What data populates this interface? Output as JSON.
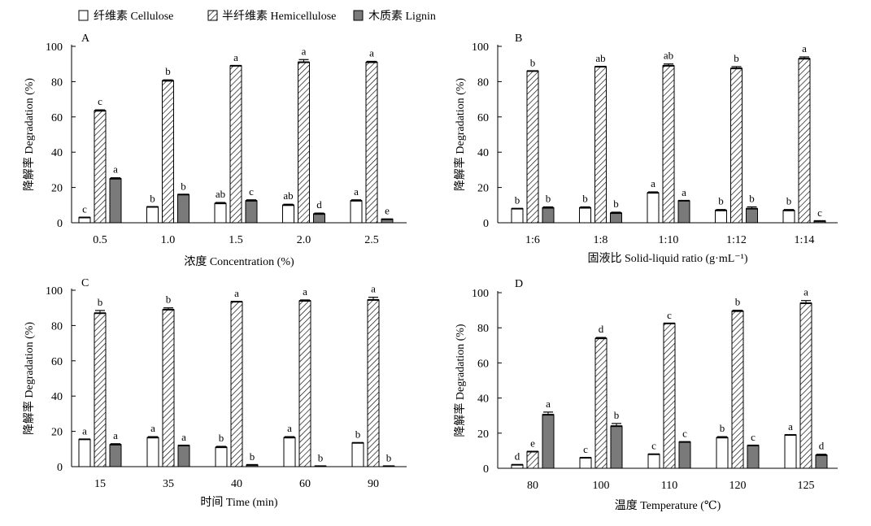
{
  "legend": [
    {
      "label": "纤维素 Cellulose",
      "pattern": "white"
    },
    {
      "label": "半纤维素 Hemicellulose",
      "pattern": "hatch"
    },
    {
      "label": "木质素 Lignin",
      "pattern": "gray"
    }
  ],
  "colors": {
    "cellulose": "#ffffff",
    "lignin": "#7a7a7a",
    "stroke": "#000000"
  },
  "chart_data": [
    {
      "type": "bar",
      "panel": "A",
      "xlabel": "浓度 Concentration (%)",
      "ylabel": "降解率 Degradation (%)",
      "ylim": [
        0,
        100
      ],
      "yticks": [
        0,
        20,
        40,
        60,
        80,
        100
      ],
      "categories": [
        "0.5",
        "1.0",
        "1.5",
        "2.0",
        "2.5"
      ],
      "series": [
        {
          "name": "纤维素 Cellulose",
          "values": [
            3,
            9,
            11,
            10,
            12.5
          ],
          "errors": [
            0,
            0,
            0.5,
            0.5,
            0.5
          ],
          "labels": [
            "c",
            "b",
            "ab",
            "ab",
            "a"
          ]
        },
        {
          "name": "半纤维素 Hemicellulose",
          "values": [
            63.5,
            80.5,
            89,
            91,
            91
          ],
          "errors": [
            0.5,
            0.5,
            0,
            1.5,
            0.5
          ],
          "labels": [
            "c",
            "b",
            "a",
            "a",
            "a"
          ]
        },
        {
          "name": "木质素 Lignin",
          "values": [
            25,
            16,
            12.5,
            5,
            2
          ],
          "errors": [
            0.5,
            0,
            0.5,
            0.5,
            0
          ],
          "labels": [
            "a",
            "b",
            "c",
            "d",
            "e"
          ]
        }
      ]
    },
    {
      "type": "bar",
      "panel": "B",
      "xlabel": "固液比 Solid-liquid ratio (g·mL⁻¹)",
      "ylabel": "降解率 Degradation (%)",
      "ylim": [
        0,
        100
      ],
      "yticks": [
        0,
        20,
        40,
        60,
        80,
        100
      ],
      "categories": [
        "1:6",
        "1:8",
        "1:10",
        "1:12",
        "1:14"
      ],
      "series": [
        {
          "name": "纤维素 Cellulose",
          "values": [
            8,
            8.5,
            17,
            7,
            7
          ],
          "errors": [
            0,
            0.5,
            0.5,
            0.5,
            0.5
          ],
          "labels": [
            "b",
            "b",
            "a",
            "b",
            "b"
          ]
        },
        {
          "name": "半纤维素 Hemicellulose",
          "values": [
            86,
            88.5,
            89,
            87.5,
            93
          ],
          "errors": [
            0,
            0,
            1,
            1,
            1
          ],
          "labels": [
            "b",
            "ab",
            "ab",
            "b",
            "a"
          ]
        },
        {
          "name": "木质素 Lignin",
          "values": [
            8.5,
            5.5,
            12.5,
            8,
            1
          ],
          "errors": [
            0.5,
            0.5,
            0,
            1,
            0
          ],
          "labels": [
            "b",
            "b",
            "a",
            "b",
            "c"
          ]
        }
      ]
    },
    {
      "type": "bar",
      "panel": "C",
      "xlabel": "时间 Time (min)",
      "ylabel": "降解率 Degradation (%)",
      "ylim": [
        0,
        100
      ],
      "yticks": [
        0,
        20,
        40,
        60,
        80,
        100
      ],
      "categories": [
        "15",
        "35",
        "40",
        "60",
        "90"
      ],
      "series": [
        {
          "name": "纤维素 Cellulose",
          "values": [
            15.5,
            16.5,
            11,
            16.5,
            13.5
          ],
          "errors": [
            0,
            0.5,
            0.5,
            0.5,
            0
          ],
          "labels": [
            "a",
            "a",
            "b",
            "a",
            "b"
          ]
        },
        {
          "name": "半纤维素 Hemicellulose",
          "values": [
            87,
            89,
            93.5,
            94,
            94.5
          ],
          "errors": [
            1.5,
            1,
            0,
            0.5,
            1.5
          ],
          "labels": [
            "b",
            "b",
            "a",
            "a",
            "a"
          ]
        },
        {
          "name": "木质素 Lignin",
          "values": [
            12.5,
            12,
            1,
            0,
            0
          ],
          "errors": [
            0.5,
            0,
            0,
            0,
            0
          ],
          "labels": [
            "a",
            "a",
            "b",
            "b",
            "b"
          ]
        }
      ]
    },
    {
      "type": "bar",
      "panel": "D",
      "xlabel": "温度 Temperature (℃)",
      "ylabel": "降解率 Degradation (%)",
      "ylim": [
        0,
        100
      ],
      "yticks": [
        0,
        20,
        40,
        60,
        80,
        100
      ],
      "categories": [
        "80",
        "100",
        "110",
        "120",
        "125"
      ],
      "series": [
        {
          "name": "纤维素 Cellulose",
          "values": [
            2,
            6,
            8,
            17.5,
            19
          ],
          "errors": [
            0,
            0,
            0,
            0.5,
            0
          ],
          "labels": [
            "d",
            "c",
            "c",
            "b",
            "a"
          ]
        },
        {
          "name": "半纤维素 Hemicellulose",
          "values": [
            9.5,
            74,
            82.5,
            89.5,
            94
          ],
          "errors": [
            0,
            0.5,
            0,
            0.5,
            1.5
          ],
          "labels": [
            "e",
            "d",
            "c",
            "b",
            "a"
          ]
        },
        {
          "name": "木质素 Lignin",
          "values": [
            30.5,
            24,
            15,
            13,
            7.5
          ],
          "errors": [
            1.5,
            1.5,
            0,
            0,
            0.5
          ],
          "labels": [
            "a",
            "b",
            "c",
            "c",
            "d"
          ]
        }
      ]
    }
  ]
}
